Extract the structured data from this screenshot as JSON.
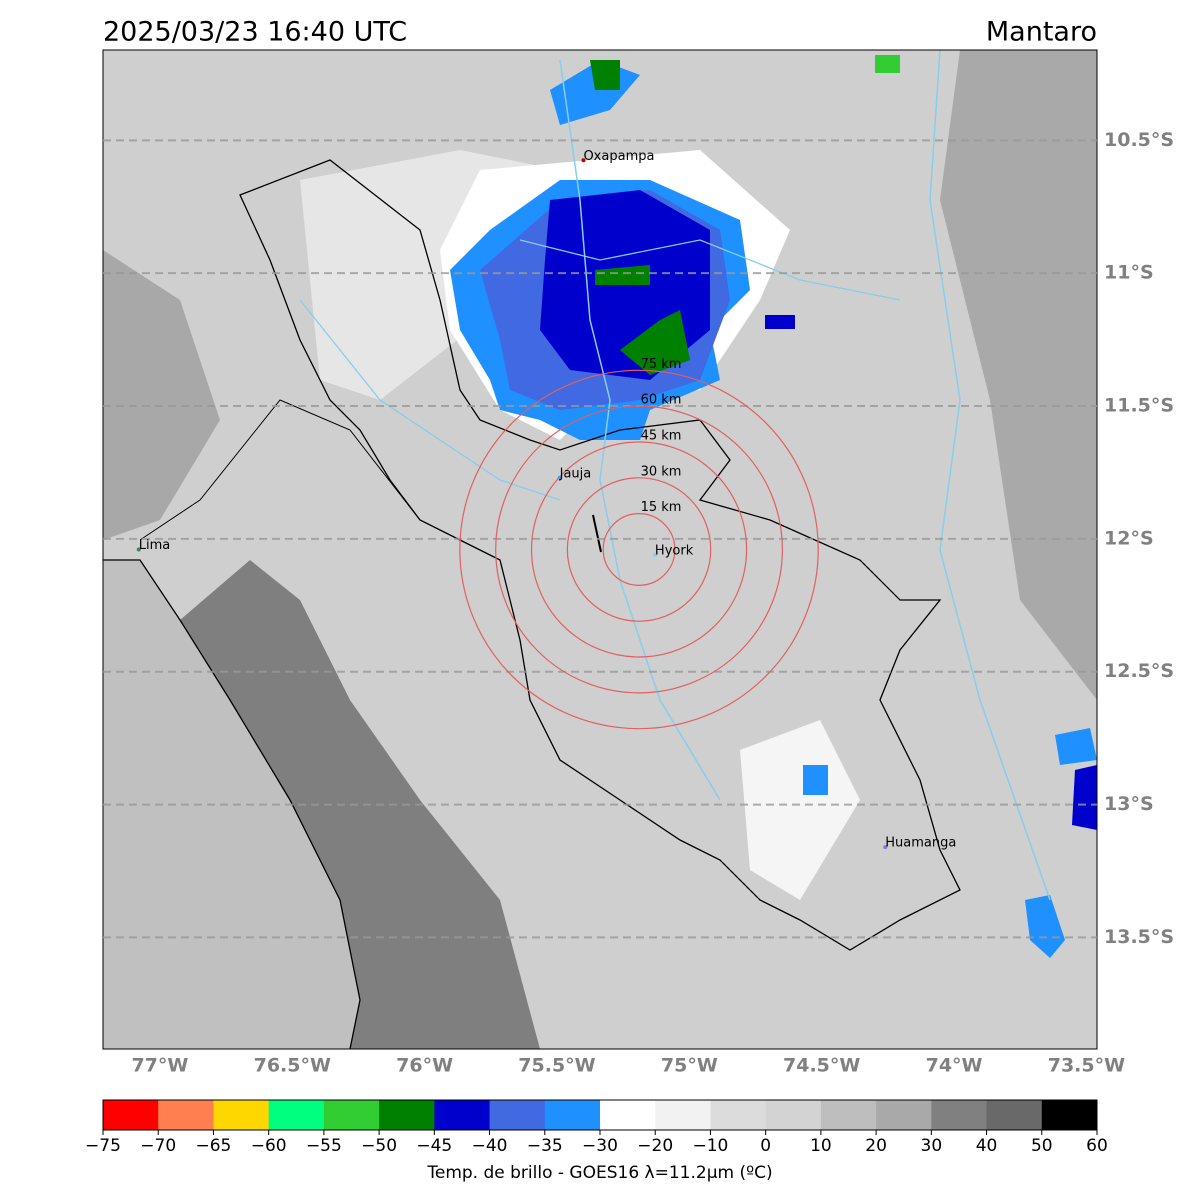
{
  "map": {
    "title": "2025/03/23 16:40 UTC",
    "region": "Mantaro",
    "lon_lim": [
      -77.215,
      -73.46
    ],
    "lat_lim": [
      -10.16,
      -13.92
    ],
    "lat_ticks": [
      {
        "value": -10.5,
        "label": "10.5°S"
      },
      {
        "value": -11,
        "label": "11°S"
      },
      {
        "value": -11.5,
        "label": "11.5°S"
      },
      {
        "value": -12,
        "label": "12°S"
      },
      {
        "value": -12.5,
        "label": "12.5°S"
      },
      {
        "value": -13,
        "label": "13°S"
      },
      {
        "value": -13.5,
        "label": "13.5°S"
      }
    ],
    "lon_ticks": [
      {
        "value": -77,
        "label": "77°W"
      },
      {
        "value": -76.5,
        "label": "76.5°W"
      },
      {
        "value": -76,
        "label": "76°W"
      },
      {
        "value": -75.5,
        "label": "75.5°W"
      },
      {
        "value": -75,
        "label": "75°W"
      },
      {
        "value": -74.5,
        "label": "74.5°W"
      },
      {
        "value": -74,
        "label": "74°W"
      },
      {
        "value": -73.5,
        "label": "73.5°W"
      }
    ],
    "cities": [
      {
        "name": "Oxapampa",
        "lon": -75.4,
        "lat": -10.575,
        "color": "#c00000"
      },
      {
        "name": "Jauja",
        "lon": -75.49,
        "lat": -11.77,
        "color": "#5b9bd5"
      },
      {
        "name": "Hyork",
        "lon": -75.13,
        "lat": -12.06,
        "color": "#87ceeb"
      },
      {
        "name": "Lima",
        "lon": -77.08,
        "lat": -12.04,
        "color": "#2e8b57"
      },
      {
        "name": "Huamanga",
        "lon": -74.26,
        "lat": -13.16,
        "color": "#9370db"
      }
    ],
    "rings": {
      "lon": -75.19,
      "lat": -12.04,
      "radii_km": [
        15,
        30,
        45,
        60,
        75
      ],
      "labels": [
        "15 km",
        "30 km",
        "45 km",
        "60 km",
        "75 km"
      ]
    },
    "colorbar": {
      "label": "Temp. de brillo - GOES16 λ=11.2μm (ºC)",
      "boundaries": [
        {
          "value": -75,
          "label": "−75"
        },
        {
          "value": -70,
          "label": "−70"
        },
        {
          "value": -65,
          "label": "−65"
        },
        {
          "value": -60,
          "label": "−60"
        },
        {
          "value": -55,
          "label": "−55"
        },
        {
          "value": -50,
          "label": "−50"
        },
        {
          "value": -45,
          "label": "−45"
        },
        {
          "value": -40,
          "label": "−40"
        },
        {
          "value": -35,
          "label": "−35"
        },
        {
          "value": -30,
          "label": "−30"
        },
        {
          "value": -20,
          "label": "−20"
        },
        {
          "value": -10,
          "label": "−10"
        },
        0,
        10,
        20,
        30,
        40,
        50,
        60
      ],
      "colors": [
        "#ff0000",
        "#ff7f50",
        "#ffd700",
        "#00ff7f",
        "#32cd32",
        "#008000",
        "#0000cd",
        "#4169e1",
        "#1e90ff",
        "#ffffff",
        "#f2f2f2",
        "#dcdcdc",
        "#d3d3d3",
        "#bebebe",
        "#a9a9a9",
        "#808080",
        "#696969",
        "#000000"
      ]
    }
  }
}
